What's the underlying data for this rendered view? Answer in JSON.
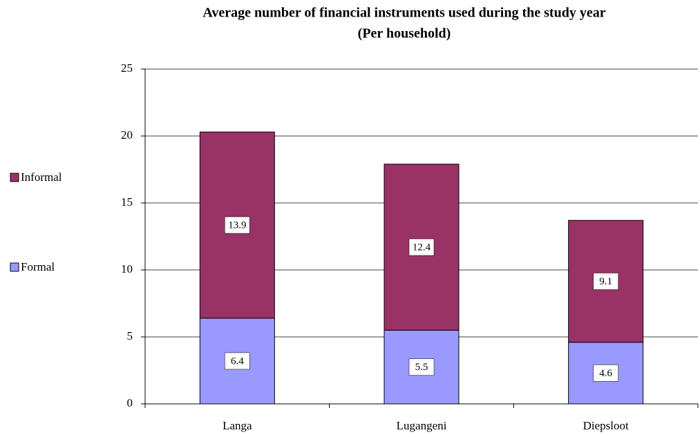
{
  "chart_data": {
    "type": "stacked_bar",
    "title": "Average number of financial instruments used during the study year",
    "subtitle": "(Per household)",
    "categories": [
      "Langa",
      "Lugangeni",
      "Diepsloot"
    ],
    "series": [
      {
        "name": "Formal",
        "color": "#9999ff",
        "values": [
          6.4,
          5.5,
          4.6
        ]
      },
      {
        "name": "Informal",
        "color": "#993366",
        "values": [
          13.9,
          12.4,
          9.1
        ]
      }
    ],
    "ylim": [
      0,
      25
    ],
    "yticks": [
      0,
      5,
      10,
      15,
      20,
      25
    ],
    "grid": true,
    "legend": "left"
  }
}
